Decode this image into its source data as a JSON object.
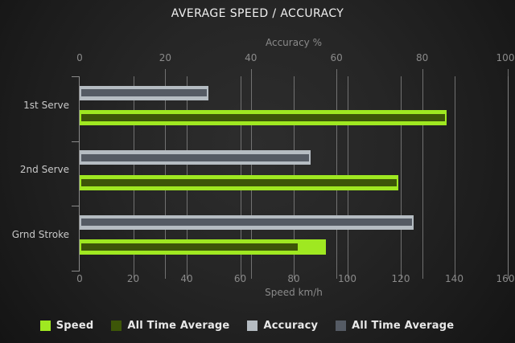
{
  "title": "AVERAGE SPEED / ACCURACY",
  "colors": {
    "background_center": "#2d2d2d",
    "background_edge": "#141414",
    "gridline": "#858585",
    "axis_text": "#8a8a8a",
    "category_text": "#c8c8c8",
    "title_text": "#f0f0f0",
    "legend_text": "#e8e8e8",
    "speed": "#9fe821",
    "speed_all_time_average": "#3d5608",
    "accuracy": "#b5bcc2",
    "accuracy_all_time_average": "#555b64"
  },
  "chart_data": {
    "type": "bar",
    "orientation": "horizontal",
    "title": "AVERAGE SPEED / ACCURACY",
    "categories": [
      "1st Serve",
      "2nd Serve",
      "Grnd Stroke"
    ],
    "series": [
      {
        "name": "Speed",
        "axis": "bottom",
        "role": "outer",
        "color": "#9fe821",
        "values": [
          137,
          119,
          92
        ]
      },
      {
        "name": "All Time Average",
        "axis": "bottom",
        "role": "overlay-of-Speed",
        "color": "#3d5608",
        "values": [
          137,
          119,
          82
        ]
      },
      {
        "name": "Accuracy",
        "axis": "top",
        "role": "outer",
        "color": "#b5bcc2",
        "values": [
          30,
          54,
          78
        ]
      },
      {
        "name": "All Time Average",
        "axis": "top",
        "role": "overlay-of-Accuracy",
        "color": "#555b64",
        "values": [
          30,
          54,
          78
        ]
      }
    ],
    "axes": {
      "top": {
        "label": "Accuracy %",
        "min": 0,
        "max": 100,
        "ticks": [
          0,
          20,
          40,
          60,
          80,
          100
        ]
      },
      "bottom": {
        "label": "Speed km/h",
        "min": 0,
        "max": 160,
        "ticks": [
          0,
          20,
          40,
          60,
          80,
          100,
          120,
          140,
          160
        ]
      }
    },
    "grid": true,
    "legend_position": "bottom"
  },
  "legend": {
    "items": [
      {
        "label": "Speed",
        "color": "#9fe821"
      },
      {
        "label": "All Time Average",
        "color": "#3d5608"
      },
      {
        "label": "Accuracy",
        "color": "#b5bcc2"
      },
      {
        "label": "All Time Average",
        "color": "#555b64"
      }
    ]
  }
}
